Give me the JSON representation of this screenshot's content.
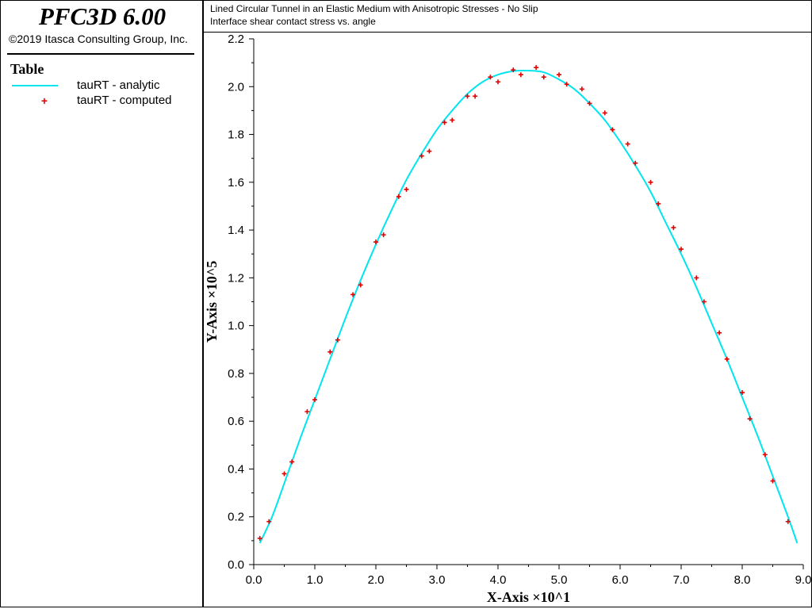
{
  "app": {
    "title": "PFC3D 6.00",
    "copyright": "©2019 Itasca Consulting Group, Inc."
  },
  "legend": {
    "heading": "Table",
    "items": [
      {
        "label": "tauRT - analytic",
        "color": "#00e5ee",
        "style": "line"
      },
      {
        "label": "tauRT - computed",
        "color": "#e00000",
        "style": "plus-marker"
      }
    ]
  },
  "chart_data": {
    "type": "line",
    "title": "Lined Circular Tunnel in an Elastic Medium with Anisotropic Stresses - No Slip",
    "subtitle": "Interface shear contact stress vs. angle",
    "xlabel": "X-Axis ×10^1",
    "ylabel": "Y-Axis ×10^5",
    "xlim": [
      0,
      9
    ],
    "ylim": [
      0,
      2.2
    ],
    "xticks": [
      "0.0",
      "1.0",
      "2.0",
      "3.0",
      "4.0",
      "5.0",
      "6.0",
      "7.0",
      "8.0",
      "9.0"
    ],
    "yticks": [
      "0.0",
      "0.2",
      "0.4",
      "0.6",
      "0.8",
      "1.0",
      "1.2",
      "1.4",
      "1.6",
      "1.8",
      "2.0",
      "2.2"
    ],
    "grid": false,
    "series": [
      {
        "name": "tauRT - analytic",
        "style": "line",
        "color": "#00e5ee",
        "x": [
          0.1,
          0.3,
          0.5,
          0.75,
          1.0,
          1.25,
          1.5,
          1.75,
          2.0,
          2.25,
          2.5,
          2.75,
          3.0,
          3.25,
          3.5,
          3.75,
          4.0,
          4.25,
          4.5,
          4.75,
          5.0,
          5.25,
          5.5,
          5.75,
          6.0,
          6.25,
          6.5,
          6.75,
          7.0,
          7.25,
          7.5,
          7.75,
          8.0,
          8.25,
          8.5,
          8.75,
          8.9
        ],
        "y": [
          0.09,
          0.2,
          0.34,
          0.52,
          0.69,
          0.86,
          1.03,
          1.19,
          1.34,
          1.48,
          1.61,
          1.72,
          1.82,
          1.9,
          1.97,
          2.02,
          2.05,
          2.065,
          2.067,
          2.06,
          2.03,
          1.99,
          1.93,
          1.86,
          1.77,
          1.67,
          1.56,
          1.43,
          1.3,
          1.16,
          1.01,
          0.86,
          0.7,
          0.54,
          0.37,
          0.2,
          0.09
        ]
      },
      {
        "name": "tauRT - computed",
        "style": "plus-marker",
        "color": "#e00000",
        "x": [
          0.1,
          0.25,
          0.5,
          0.625,
          0.875,
          1.0,
          1.25,
          1.375,
          1.625,
          1.75,
          2.0,
          2.125,
          2.375,
          2.5,
          2.75,
          2.875,
          3.125,
          3.25,
          3.5,
          3.625,
          3.875,
          4.0,
          4.25,
          4.375,
          4.625,
          4.75,
          5.0,
          5.125,
          5.375,
          5.5,
          5.75,
          5.875,
          6.125,
          6.25,
          6.5,
          6.625,
          6.875,
          7.0,
          7.25,
          7.375,
          7.625,
          7.75,
          8.0,
          8.125,
          8.375,
          8.5,
          8.75
        ],
        "y": [
          0.11,
          0.18,
          0.38,
          0.43,
          0.64,
          0.69,
          0.89,
          0.94,
          1.13,
          1.17,
          1.35,
          1.38,
          1.54,
          1.57,
          1.71,
          1.73,
          1.85,
          1.86,
          1.96,
          1.96,
          2.04,
          2.02,
          2.07,
          2.05,
          2.08,
          2.04,
          2.05,
          2.01,
          1.99,
          1.93,
          1.89,
          1.82,
          1.76,
          1.68,
          1.6,
          1.51,
          1.41,
          1.32,
          1.2,
          1.1,
          0.97,
          0.86,
          0.72,
          0.61,
          0.46,
          0.35,
          0.18
        ]
      }
    ]
  }
}
